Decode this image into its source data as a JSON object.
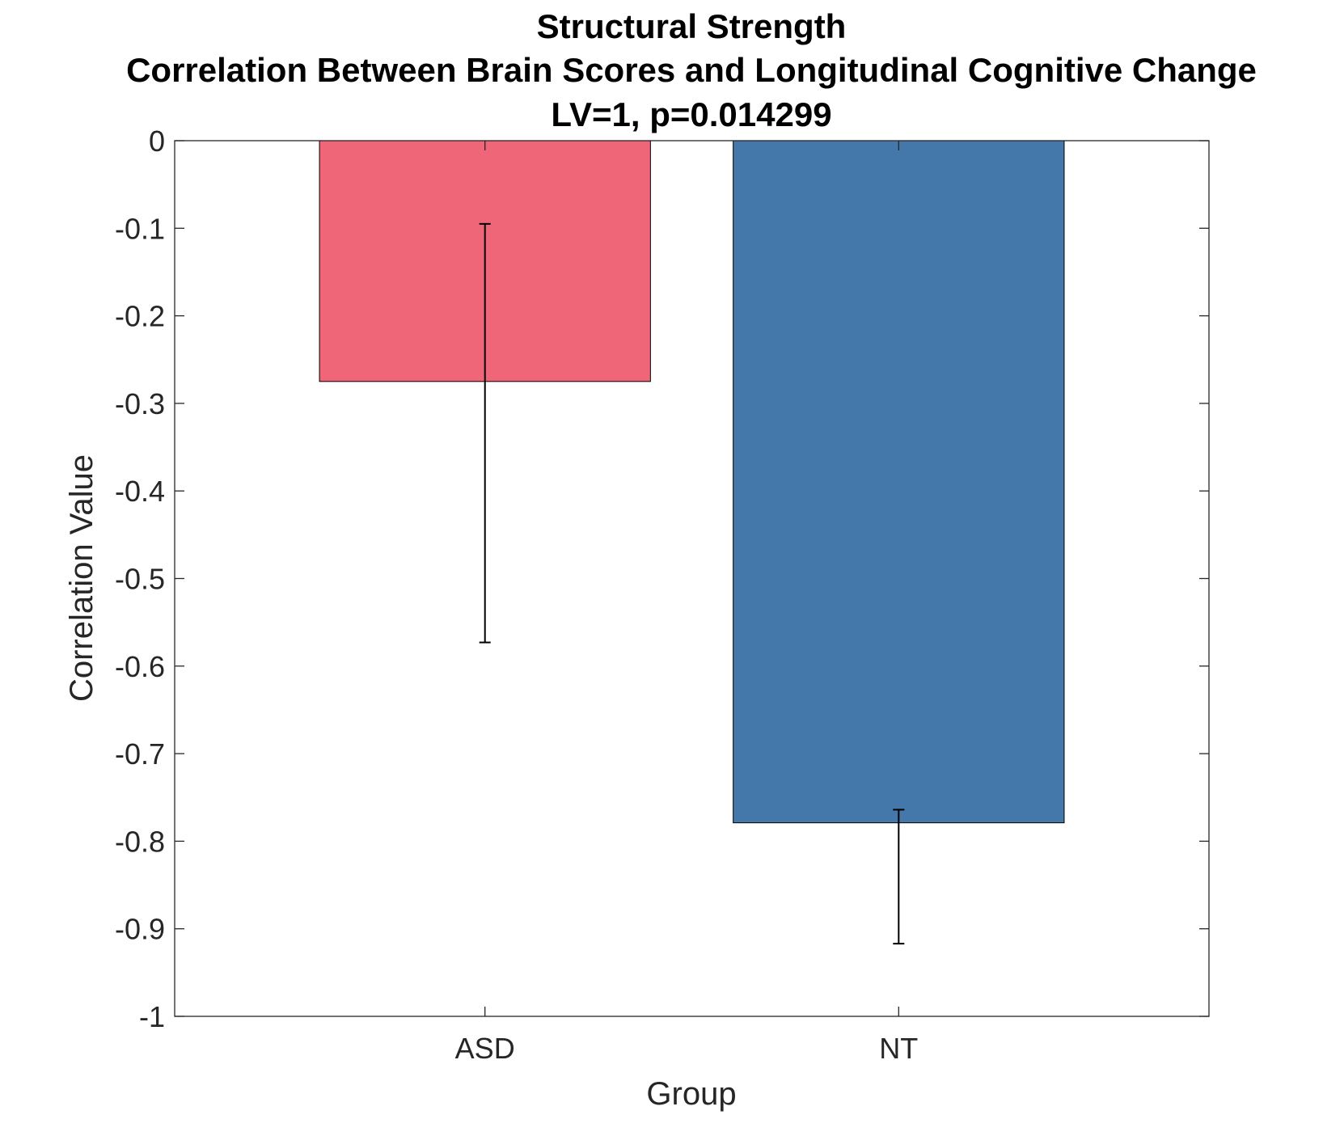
{
  "chart_data": {
    "type": "bar",
    "title": [
      "Structural Strength",
      "Correlation Between Brain Scores and Longitudinal Cognitive Change",
      "LV=1, p=0.014299"
    ],
    "xlabel": "Group",
    "ylabel": "Correlation Value",
    "categories": [
      "ASD",
      "NT"
    ],
    "values": [
      -0.275,
      -0.779
    ],
    "error_bars": [
      {
        "low": -0.573,
        "high": -0.095
      },
      {
        "low": -0.917,
        "high": -0.764
      }
    ],
    "colors": [
      "#EE6677",
      "#4477AA"
    ],
    "ylim": [
      -1,
      0
    ],
    "yticks": [
      0,
      -0.1,
      -0.2,
      -0.3,
      -0.4,
      -0.5,
      -0.6,
      -0.7,
      -0.8,
      -0.9,
      -1
    ],
    "ytick_labels": [
      "0",
      "-0.1",
      "-0.2",
      "-0.3",
      "-0.4",
      "-0.5",
      "-0.6",
      "-0.7",
      "-0.8",
      "-0.9",
      "-1"
    ],
    "grid": false,
    "legend": "none"
  }
}
